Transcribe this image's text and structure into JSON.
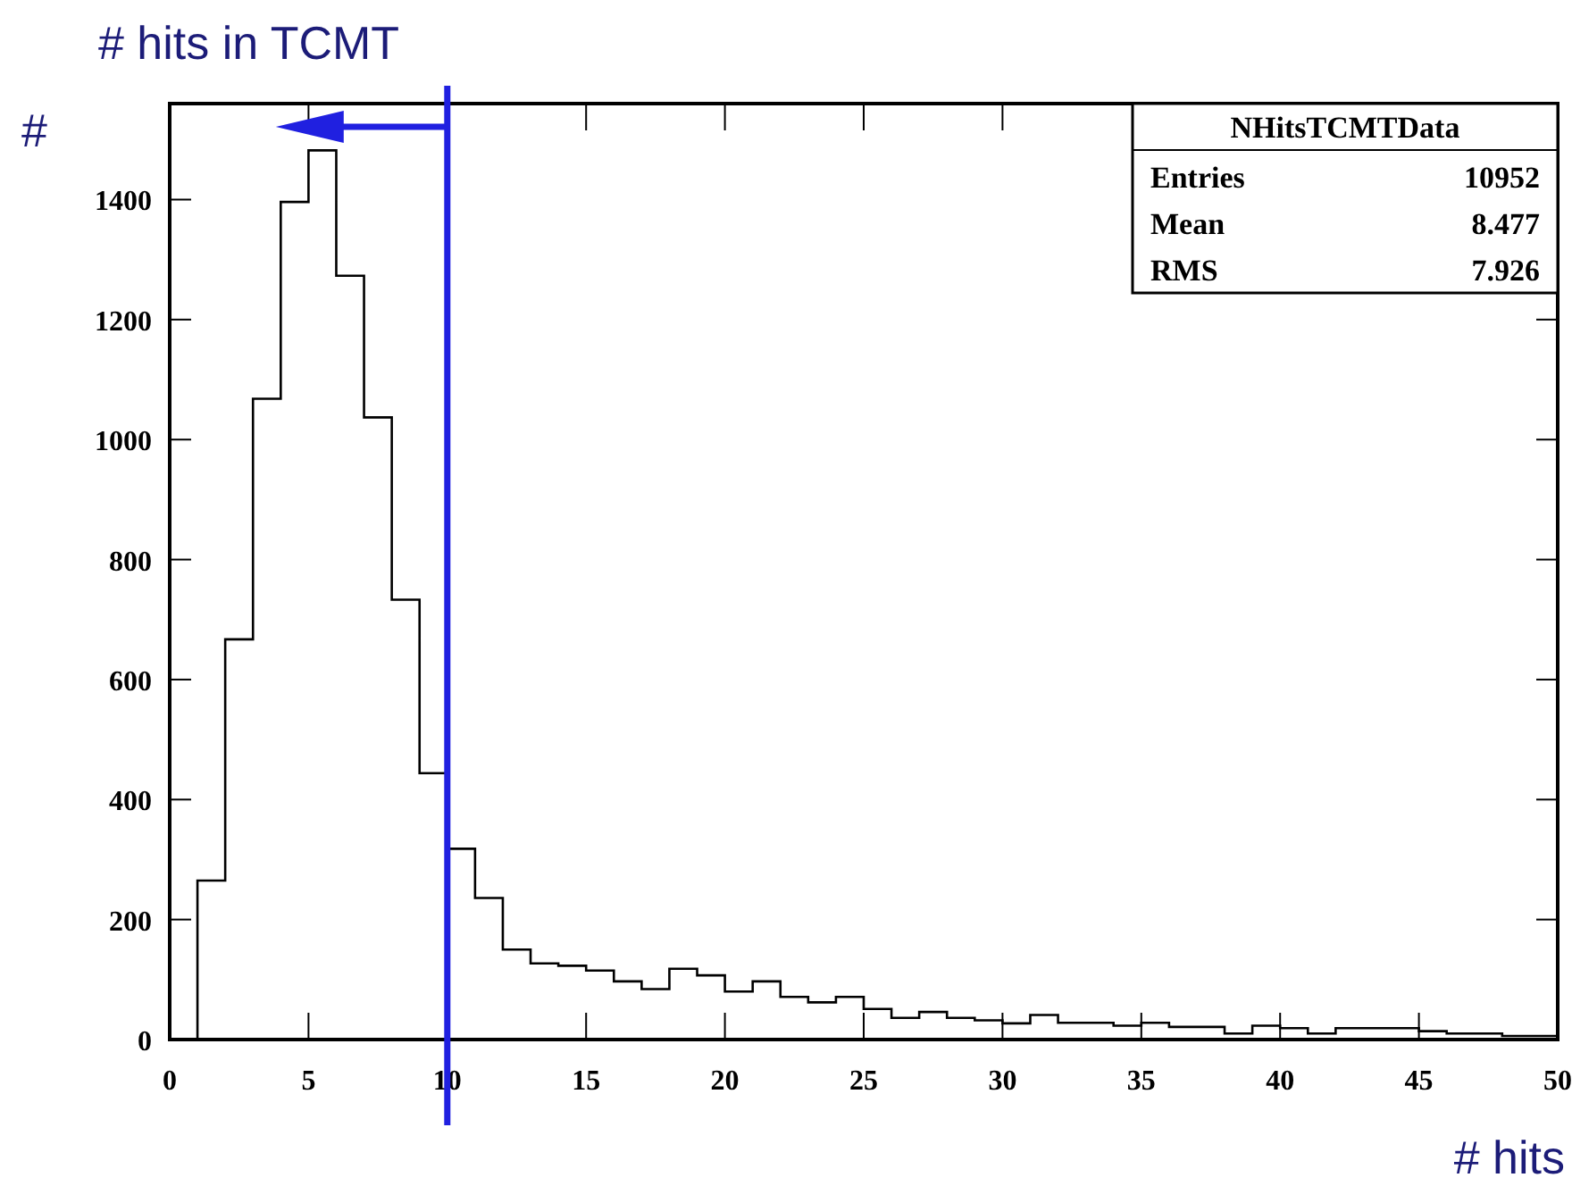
{
  "chart_data": {
    "type": "histogram",
    "title": "# hits in TCMT",
    "xlabel": "# hits",
    "ylabel": "#",
    "bins": [
      0,
      1,
      2,
      3,
      4,
      5,
      6,
      7,
      8,
      9,
      10,
      11,
      12,
      13,
      14,
      15,
      16,
      17,
      18,
      19,
      20,
      21,
      22,
      23,
      24,
      25,
      26,
      27,
      28,
      29,
      30,
      31,
      32,
      33,
      34,
      35,
      36,
      37,
      38,
      39,
      40,
      41,
      42,
      43,
      44,
      45,
      46,
      47,
      48,
      49,
      50
    ],
    "values": [
      0,
      265,
      667,
      1068,
      1396,
      1482,
      1273,
      1037,
      733,
      444,
      318,
      236,
      150,
      127,
      123,
      115,
      97,
      84,
      118,
      107,
      80,
      97,
      71,
      62,
      71,
      51,
      36,
      46,
      36,
      32,
      27,
      41,
      28,
      28,
      23,
      28,
      21,
      21,
      10,
      23,
      19,
      10,
      19,
      19,
      19,
      14,
      10,
      10,
      6,
      6
    ],
    "color": "#000000",
    "xlim": [
      0,
      50
    ],
    "xticks": [
      0,
      5,
      10,
      15,
      20,
      25,
      30,
      35,
      40,
      45,
      50
    ],
    "ylim": [
      0,
      1560
    ],
    "yticks": [
      0,
      200,
      400,
      600,
      800,
      1000,
      1200,
      1400
    ],
    "ref_lines": [
      {
        "axis": "x",
        "value": 10,
        "color": "#2020e0"
      }
    ],
    "annotations": [
      "NHitsTCMTData",
      "Entries",
      "10952",
      "Mean",
      "8.477",
      "RMS",
      "7.926"
    ],
    "grid": false
  }
}
